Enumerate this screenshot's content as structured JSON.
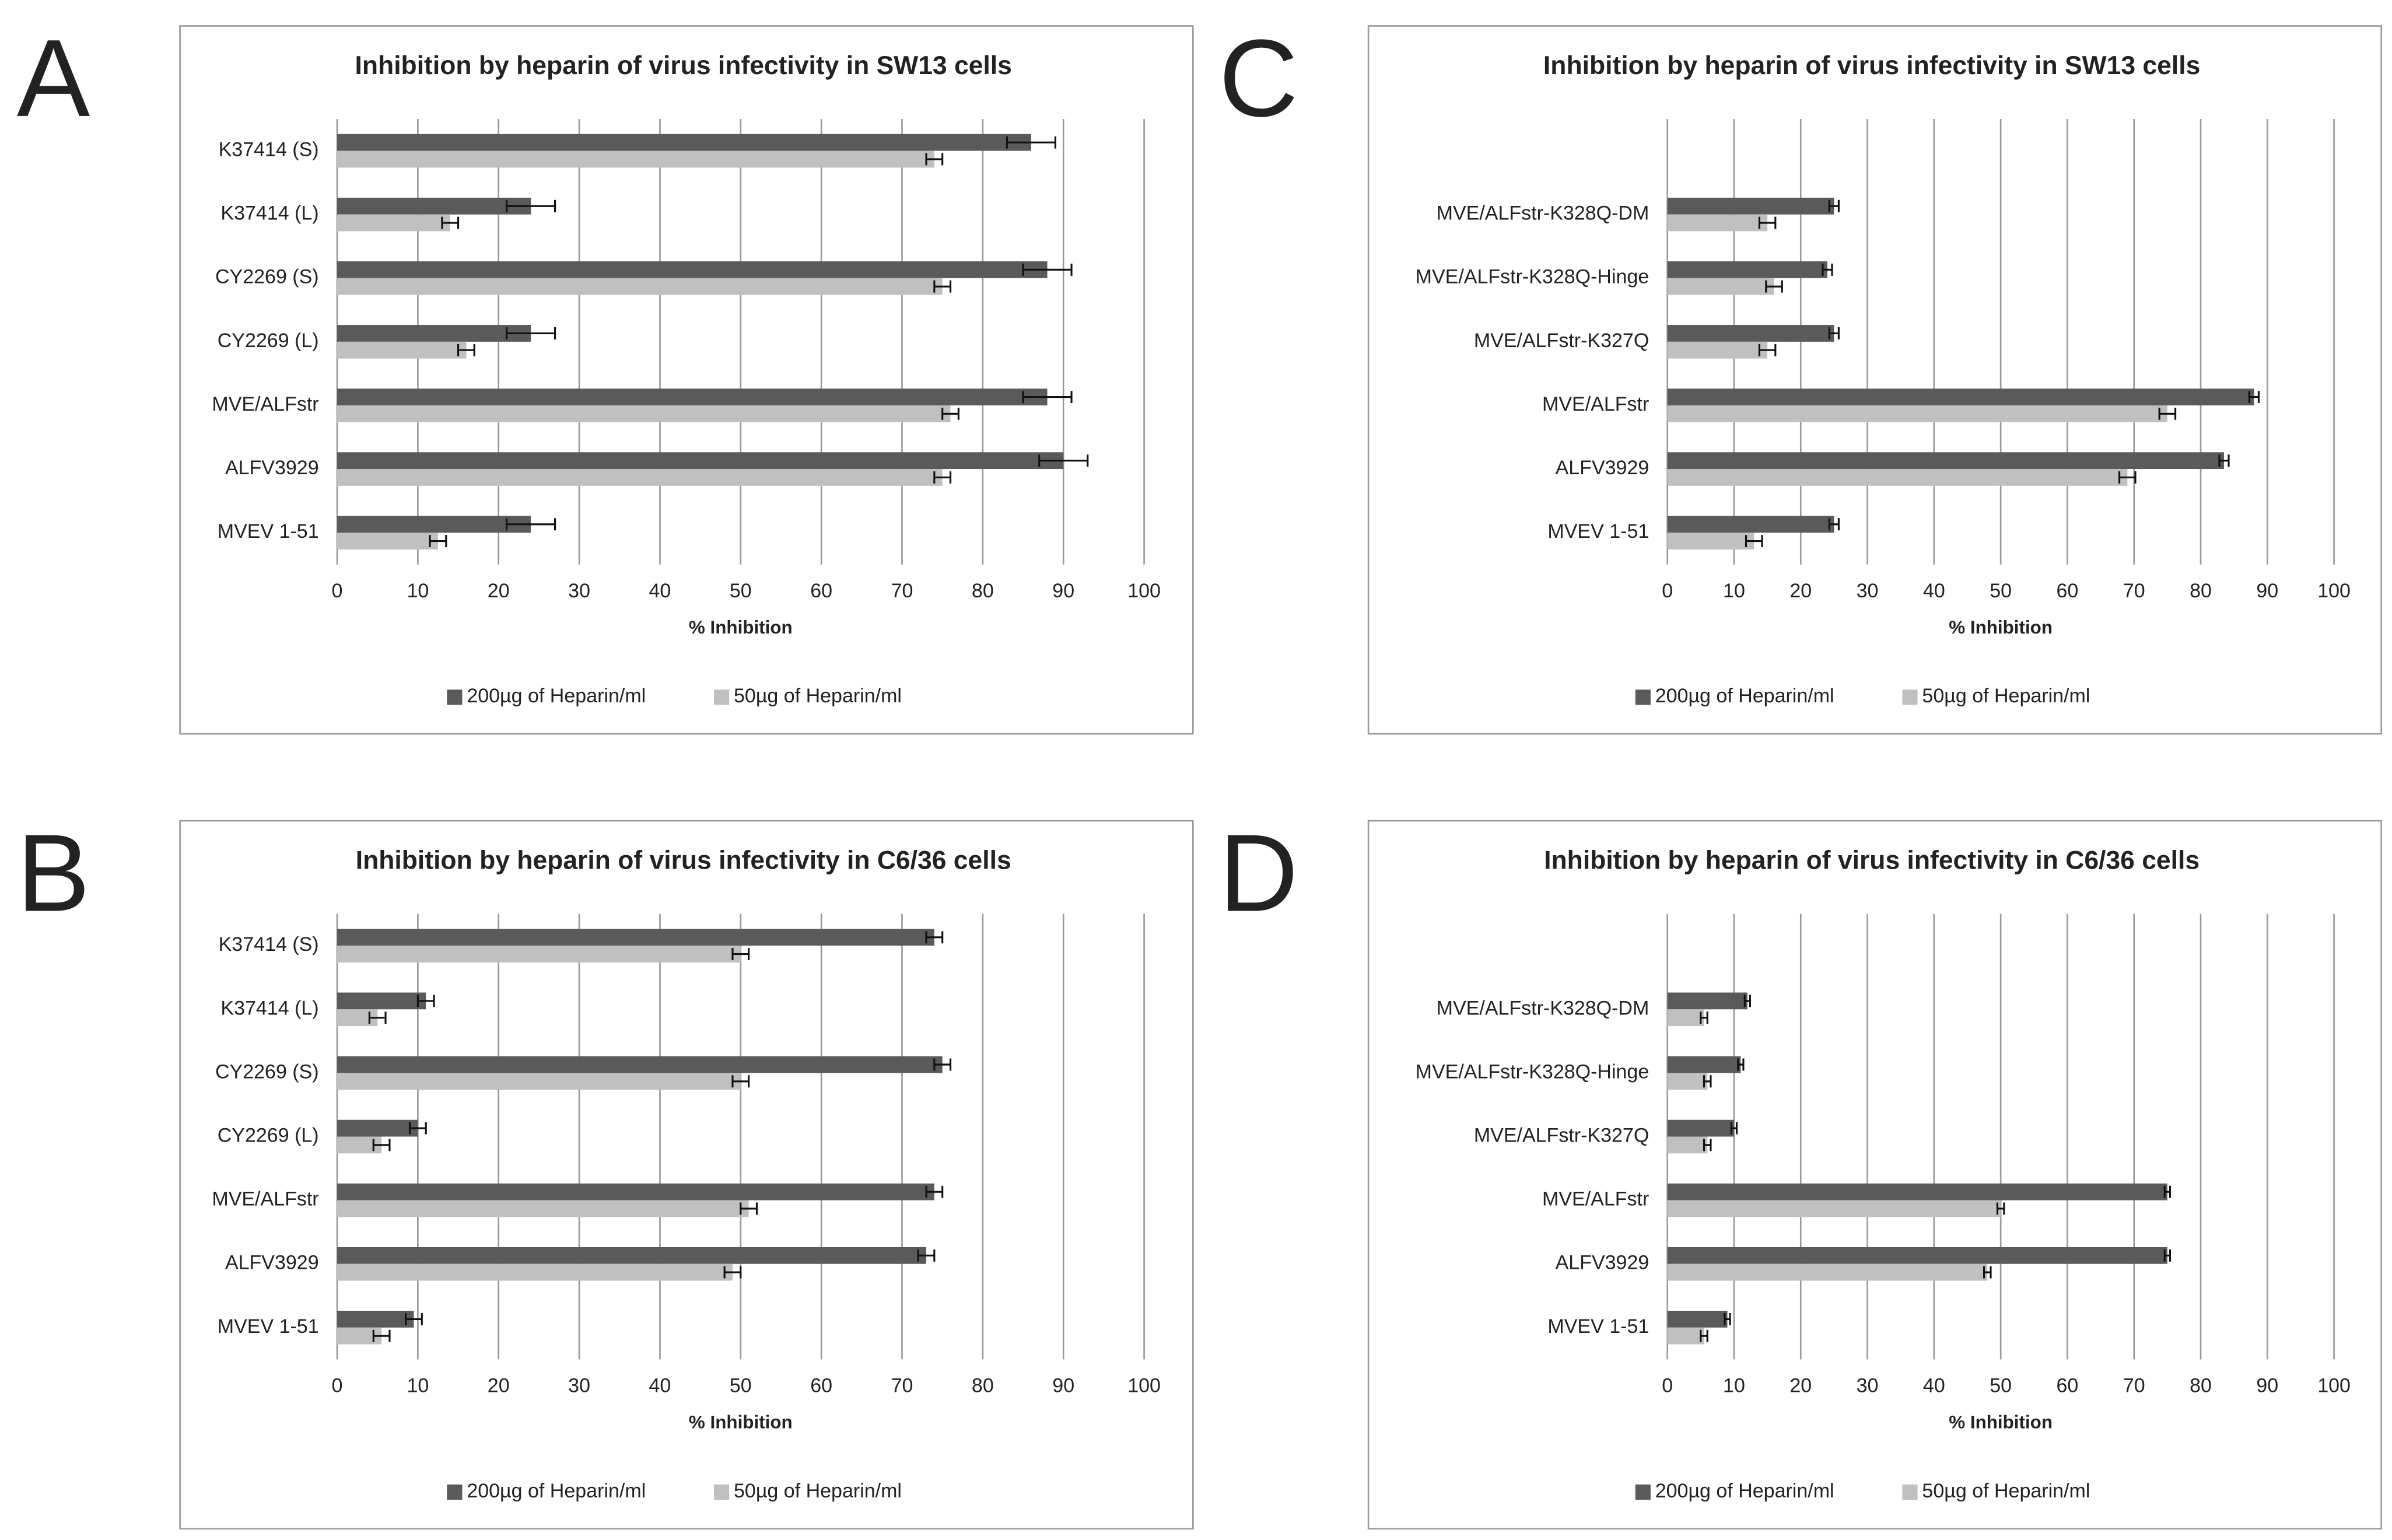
{
  "chart_data": [
    {
      "type": "bar",
      "panel": "A",
      "title": "Inhibition by heparin of virus infectivity in SW13 cells",
      "categories": [
        "K37414 (S)",
        "K37414 (L)",
        "CY2269 (S)",
        "CY2269 (L)",
        "MVE/ALFstr",
        "ALFV3929",
        "MVEV 1-51"
      ],
      "series": [
        {
          "name": "200µg of Heparin/ml",
          "color": "#5a5a5a",
          "values": [
            86,
            24,
            88,
            24,
            88,
            90,
            24
          ],
          "errors": [
            3,
            3,
            3,
            3,
            3,
            3,
            3
          ]
        },
        {
          "name": "50µg of Heparin/ml",
          "color": "#c0c0c0",
          "values": [
            74,
            14,
            75,
            16,
            76,
            75,
            12.5
          ],
          "errors": [
            1,
            1,
            1,
            1,
            1,
            1,
            1
          ]
        }
      ],
      "xlabel": "% Inhibition",
      "xlim": [
        0,
        100
      ],
      "xticks": [
        0,
        10,
        20,
        30,
        40,
        50,
        60,
        70,
        80,
        90,
        100
      ],
      "grid": true
    },
    {
      "type": "bar",
      "panel": "B",
      "title": "Inhibition by heparin of virus infectivity in C6/36 cells",
      "categories": [
        "K37414 (S)",
        "K37414 (L)",
        "CY2269 (S)",
        "CY2269 (L)",
        "MVE/ALFstr",
        "ALFV3929",
        "MVEV 1-51"
      ],
      "series": [
        {
          "name": "200µg of Heparin/ml",
          "color": "#5a5a5a",
          "values": [
            74,
            11,
            75,
            10,
            74,
            73,
            9.5
          ],
          "errors": [
            1,
            1,
            1,
            1,
            1,
            1,
            1
          ]
        },
        {
          "name": "50µg of Heparin/ml",
          "color": "#c0c0c0",
          "values": [
            50,
            5,
            50,
            5.5,
            51,
            49,
            5.5
          ],
          "errors": [
            1,
            1,
            1,
            1,
            1,
            1,
            1
          ]
        }
      ],
      "xlabel": "% Inhibition",
      "xlim": [
        0,
        100
      ],
      "xticks": [
        0,
        10,
        20,
        30,
        40,
        50,
        60,
        70,
        80,
        90,
        100
      ],
      "grid": true
    },
    {
      "type": "bar",
      "panel": "C",
      "title": "Inhibition by heparin of virus infectivity in SW13 cells",
      "categories": [
        null,
        "MVE/ALFstr-K328Q-DM",
        "MVE/ALFstr-K328Q-Hinge",
        "MVE/ALFstr-K327Q",
        "MVE/ALFstr",
        "ALFV3929",
        "MVEV 1-51"
      ],
      "series": [
        {
          "name": "200µg of Heparin/ml",
          "color": "#5a5a5a",
          "values": [
            null,
            25,
            24,
            25,
            88,
            83.5,
            25
          ],
          "errors": [
            null,
            0.7,
            0.7,
            0.7,
            0.7,
            0.7,
            0.7
          ]
        },
        {
          "name": "50µg of Heparin/ml",
          "color": "#c0c0c0",
          "values": [
            null,
            15,
            16,
            15,
            75,
            69,
            13
          ],
          "errors": [
            null,
            1.2,
            1.2,
            1.2,
            1.2,
            1.2,
            1.2
          ]
        }
      ],
      "xlabel": "% Inhibition",
      "xlim": [
        0,
        100
      ],
      "xticks": [
        0,
        10,
        20,
        30,
        40,
        50,
        60,
        70,
        80,
        90,
        100
      ],
      "grid": true
    },
    {
      "type": "bar",
      "panel": "D",
      "title": "Inhibition by heparin of virus infectivity in C6/36 cells",
      "categories": [
        null,
        "MVE/ALFstr-K328Q-DM",
        "MVE/ALFstr-K328Q-Hinge",
        "MVE/ALFstr-K327Q",
        "MVE/ALFstr",
        "ALFV3929",
        "MVEV 1-51"
      ],
      "series": [
        {
          "name": "200µg of Heparin/ml",
          "color": "#5a5a5a",
          "values": [
            null,
            12,
            11,
            10,
            75,
            75,
            9
          ],
          "errors": [
            null,
            0.4,
            0.4,
            0.4,
            0.4,
            0.4,
            0.4
          ]
        },
        {
          "name": "50µg of Heparin/ml",
          "color": "#c0c0c0",
          "values": [
            null,
            5.5,
            6,
            6,
            50,
            48,
            5.5
          ],
          "errors": [
            null,
            0.5,
            0.5,
            0.5,
            0.5,
            0.5,
            0.5
          ]
        }
      ],
      "xlabel": "% Inhibition",
      "xlim": [
        0,
        100
      ],
      "xticks": [
        0,
        10,
        20,
        30,
        40,
        50,
        60,
        70,
        80,
        90,
        100
      ],
      "grid": true
    }
  ]
}
